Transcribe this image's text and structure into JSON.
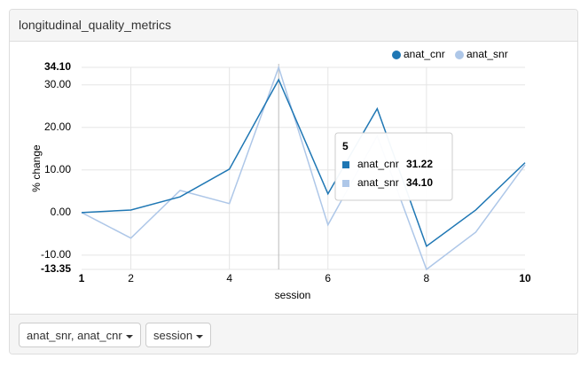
{
  "panel": {
    "title": "longitudinal_quality_metrics"
  },
  "chart_data": {
    "type": "line",
    "x_label": "session",
    "y_label": "% change",
    "x": [
      1,
      2,
      3,
      4,
      5,
      6,
      7,
      8,
      9,
      10
    ],
    "series": [
      {
        "name": "anat_cnr",
        "color": "#1f77b4",
        "values": [
          0,
          0.6,
          3.7,
          10.2,
          31.22,
          4.4,
          24.4,
          -7.9,
          0.6,
          11.7
        ]
      },
      {
        "name": "anat_snr",
        "color": "#aec7e8",
        "values": [
          0,
          -6.0,
          5.2,
          2.1,
          34.1,
          -2.9,
          18.0,
          -13.35,
          -4.6,
          11.2
        ],
        "value_labels": [
          null,
          null,
          null,
          null,
          "34.10",
          null,
          null,
          null,
          null,
          null
        ]
      }
    ],
    "xlim": [
      1,
      10
    ],
    "xticks": [
      1,
      2,
      4,
      6,
      8,
      10
    ],
    "ylim": [
      -13.35,
      34.1
    ],
    "yticks": [
      {
        "value": 34.1,
        "label": "34.10"
      },
      {
        "value": 30,
        "label": "30.00"
      },
      {
        "value": 20,
        "label": "20.00"
      },
      {
        "value": 10,
        "label": "10.00"
      },
      {
        "value": 0,
        "label": "0.00"
      },
      {
        "value": -10,
        "label": "-10.00"
      },
      {
        "value": -13.35,
        "label": "-13.35"
      }
    ],
    "grid": true,
    "legend": "top-right",
    "hover_x": 5
  },
  "controls": {
    "buttons": [
      "anat_snr, anat_cnr",
      "session"
    ]
  }
}
